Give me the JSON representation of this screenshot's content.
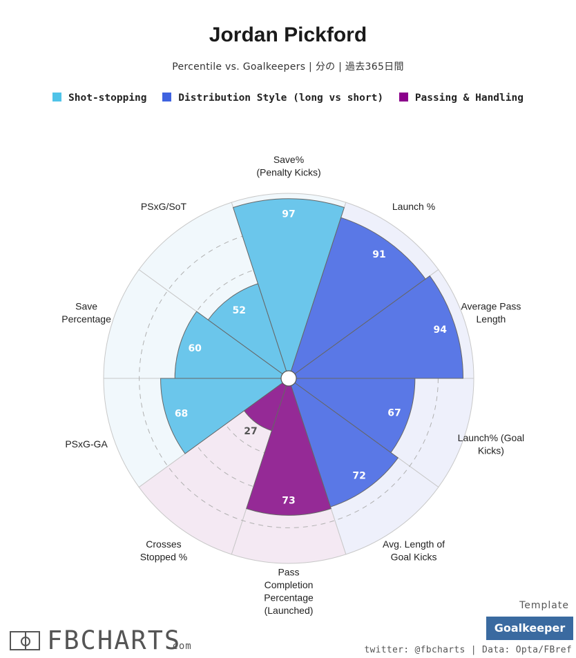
{
  "title": "Jordan Pickford",
  "subtitle": "Percentile vs. Goalkeepers | 分の | 過去365日間",
  "legend": [
    {
      "label": "Shot-stopping",
      "color": "#4fc3e8"
    },
    {
      "label": "Distribution Style (long vs short)",
      "color": "#3f63e0"
    },
    {
      "label": "Passing & Handling",
      "color": "#8b008b"
    }
  ],
  "chart_data": {
    "type": "polar-bar",
    "max": 100,
    "grid_rings": [
      20,
      40,
      60,
      80
    ],
    "categories": [
      {
        "label": "Save%\n(Penalty Kicks)",
        "value": 97,
        "group": "Shot-stopping"
      },
      {
        "label": "Launch %",
        "value": 91,
        "group": "Distribution Style (long vs short)"
      },
      {
        "label": "Average Pass\nLength",
        "value": 94,
        "group": "Distribution Style (long vs short)"
      },
      {
        "label": "Launch% (Goal\nKicks)",
        "value": 67,
        "group": "Distribution Style (long vs short)"
      },
      {
        "label": "Avg. Length of\nGoal Kicks",
        "value": 72,
        "group": "Distribution Style (long vs short)"
      },
      {
        "label": "Pass\nCompletion\nPercentage\n(Launched)",
        "value": 73,
        "group": "Passing & Handling"
      },
      {
        "label": "Crosses\nStopped %",
        "value": 27,
        "group": "Passing & Handling"
      },
      {
        "label": "PSxG-GA",
        "value": 68,
        "group": "Shot-stopping"
      },
      {
        "label": "Save\nPercentage",
        "value": 60,
        "group": "Shot-stopping"
      },
      {
        "label": "PSxG/SoT",
        "value": 52,
        "group": "Shot-stopping"
      }
    ],
    "group_colors": {
      "Shot-stopping": {
        "bar": "#6bc6eb",
        "bg": "#f1f8fc",
        "text": "#ffffff"
      },
      "Distribution Style (long vs short)": {
        "bar": "#5a78e6",
        "bg": "#eef0fb",
        "text": "#ffffff"
      },
      "Passing & Handling": {
        "bar": "#952a96",
        "bg": "#f4e9f3",
        "text": "#ffffff"
      }
    }
  },
  "footer": {
    "template_label": "Template",
    "template_value": "Goalkeeper",
    "credit": "twitter: @fbcharts | Data: Opta/FBref",
    "brand": "FBCHARTS",
    "brand_suffix": ".com"
  }
}
